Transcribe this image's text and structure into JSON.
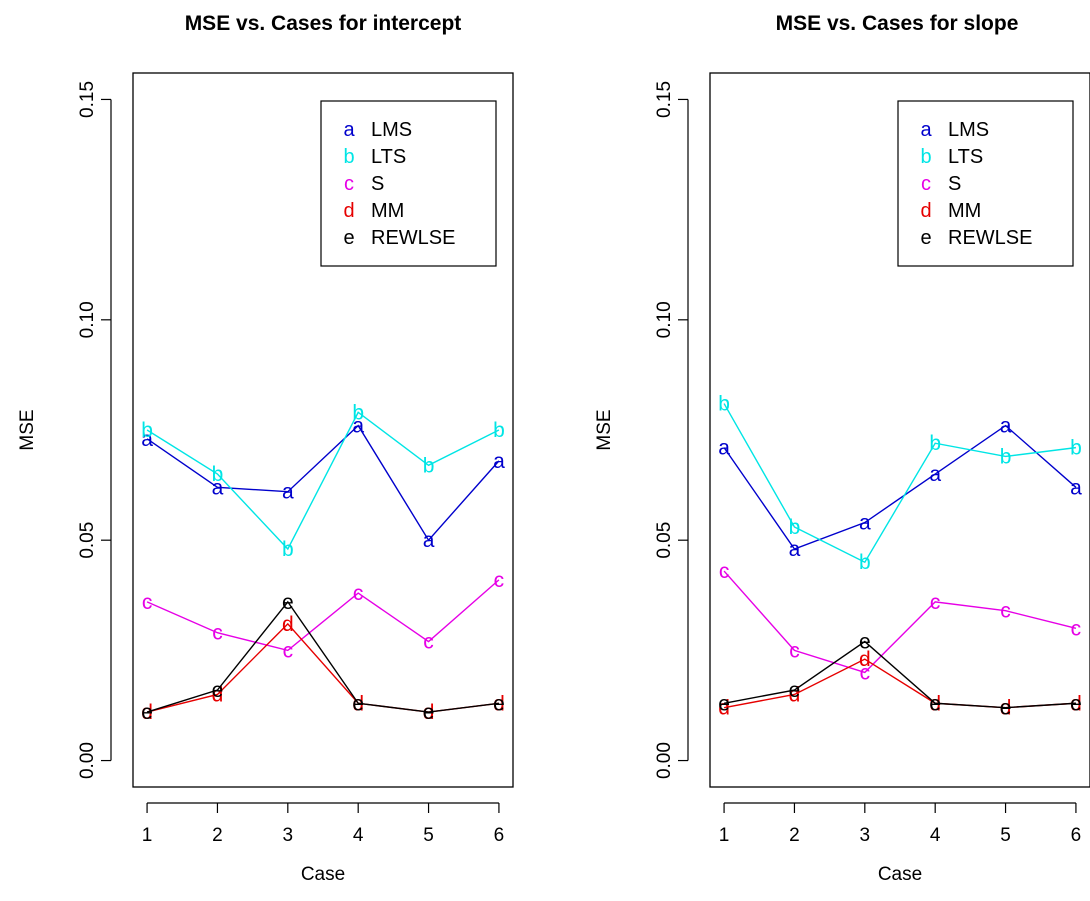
{
  "colors": {
    "a": "#0000cc",
    "b": "#00e5e5",
    "c": "#e600e6",
    "d": "#e60000",
    "e": "#000000"
  },
  "chart_data": [
    {
      "type": "line",
      "title": "MSE vs. Cases for intercept",
      "xlabel": "Case",
      "ylabel": "MSE",
      "x": [
        1,
        2,
        3,
        4,
        5,
        6
      ],
      "xlim": [
        1,
        6
      ],
      "ylim": [
        0,
        0.15
      ],
      "yticks": [
        "0.00",
        "0.05",
        "0.10",
        "0.15"
      ],
      "legend_position": "top-right",
      "series": [
        {
          "key": "a",
          "name": "LMS",
          "values": [
            0.073,
            0.062,
            0.061,
            0.076,
            0.05,
            0.068
          ]
        },
        {
          "key": "b",
          "name": "LTS",
          "values": [
            0.075,
            0.065,
            0.048,
            0.079,
            0.067,
            0.075
          ]
        },
        {
          "key": "c",
          "name": "S",
          "values": [
            0.036,
            0.029,
            0.025,
            0.038,
            0.027,
            0.041
          ]
        },
        {
          "key": "d",
          "name": "MM",
          "values": [
            0.011,
            0.015,
            0.031,
            0.013,
            0.011,
            0.013
          ]
        },
        {
          "key": "e",
          "name": "REWLSE",
          "values": [
            0.011,
            0.016,
            0.036,
            0.013,
            0.011,
            0.013
          ]
        }
      ]
    },
    {
      "type": "line",
      "title": "MSE vs. Cases for slope",
      "xlabel": "Case",
      "ylabel": "MSE",
      "x": [
        1,
        2,
        3,
        4,
        5,
        6
      ],
      "xlim": [
        1,
        6
      ],
      "ylim": [
        0,
        0.15
      ],
      "yticks": [
        "0.00",
        "0.05",
        "0.10",
        "0.15"
      ],
      "legend_position": "top-right",
      "series": [
        {
          "key": "a",
          "name": "LMS",
          "values": [
            0.071,
            0.048,
            0.054,
            0.065,
            0.076,
            0.062
          ]
        },
        {
          "key": "b",
          "name": "LTS",
          "values": [
            0.081,
            0.053,
            0.045,
            0.072,
            0.069,
            0.071
          ]
        },
        {
          "key": "c",
          "name": "S",
          "values": [
            0.043,
            0.025,
            0.02,
            0.036,
            0.034,
            0.03
          ]
        },
        {
          "key": "d",
          "name": "MM",
          "values": [
            0.012,
            0.015,
            0.023,
            0.013,
            0.012,
            0.013
          ]
        },
        {
          "key": "e",
          "name": "REWLSE",
          "values": [
            0.013,
            0.016,
            0.027,
            0.013,
            0.012,
            0.013
          ]
        }
      ]
    }
  ]
}
